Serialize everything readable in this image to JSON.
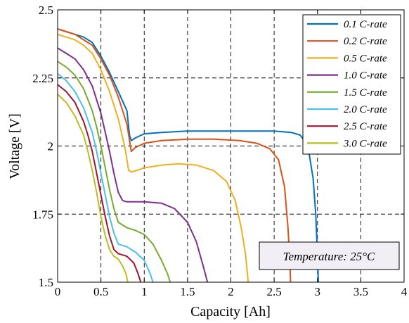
{
  "chart_data": {
    "type": "line",
    "xlabel": "Capacity [Ah]",
    "ylabel": "Voltage [V]",
    "xlim": [
      0,
      4
    ],
    "ylim": [
      1.5,
      2.5
    ],
    "xticks": [
      0,
      0.5,
      1,
      1.5,
      2,
      2.5,
      3,
      3.5,
      4
    ],
    "xtick_labels": [
      "0",
      "0.5",
      "1",
      "1.5",
      "2",
      "2.5",
      "3",
      "3.5",
      "4"
    ],
    "yticks": [
      1.5,
      1.75,
      2,
      2.25,
      2.5
    ],
    "ytick_labels": [
      "1.5",
      "1.75",
      "2",
      "2.25",
      "2.5"
    ],
    "grid": true,
    "legend_position": "top-right",
    "annotation": "Temperature: 25°C",
    "series": [
      {
        "name": "0.1 C-rate",
        "color": "#0072BD",
        "points": [
          [
            0,
            2.43
          ],
          [
            0.1,
            2.42
          ],
          [
            0.2,
            2.41
          ],
          [
            0.3,
            2.4
          ],
          [
            0.4,
            2.38
          ],
          [
            0.5,
            2.33
          ],
          [
            0.6,
            2.27
          ],
          [
            0.7,
            2.2
          ],
          [
            0.8,
            2.13
          ],
          [
            0.83,
            2.04
          ],
          [
            0.85,
            2.02
          ],
          [
            0.9,
            2.03
          ],
          [
            1.0,
            2.045
          ],
          [
            1.2,
            2.05
          ],
          [
            1.5,
            2.055
          ],
          [
            2.0,
            2.055
          ],
          [
            2.5,
            2.055
          ],
          [
            2.7,
            2.05
          ],
          [
            2.8,
            2.04
          ],
          [
            2.85,
            2.02
          ],
          [
            2.9,
            1.98
          ],
          [
            2.95,
            1.88
          ],
          [
            2.98,
            1.75
          ],
          [
            3.0,
            1.6
          ],
          [
            3.01,
            1.5
          ]
        ]
      },
      {
        "name": "0.2 C-rate",
        "color": "#D95319",
        "points": [
          [
            0,
            2.43
          ],
          [
            0.1,
            2.42
          ],
          [
            0.2,
            2.41
          ],
          [
            0.3,
            2.39
          ],
          [
            0.4,
            2.37
          ],
          [
            0.5,
            2.32
          ],
          [
            0.6,
            2.26
          ],
          [
            0.7,
            2.18
          ],
          [
            0.8,
            2.08
          ],
          [
            0.85,
            1.98
          ],
          [
            0.9,
            1.995
          ],
          [
            1.0,
            2.01
          ],
          [
            1.2,
            2.02
          ],
          [
            1.5,
            2.025
          ],
          [
            1.8,
            2.025
          ],
          [
            2.1,
            2.02
          ],
          [
            2.3,
            2.01
          ],
          [
            2.45,
            1.99
          ],
          [
            2.55,
            1.95
          ],
          [
            2.62,
            1.85
          ],
          [
            2.66,
            1.7
          ],
          [
            2.68,
            1.58
          ],
          [
            2.69,
            1.5
          ]
        ]
      },
      {
        "name": "0.5 C-rate",
        "color": "#EDB120",
        "points": [
          [
            0,
            2.41
          ],
          [
            0.1,
            2.4
          ],
          [
            0.2,
            2.39
          ],
          [
            0.3,
            2.37
          ],
          [
            0.4,
            2.34
          ],
          [
            0.5,
            2.28
          ],
          [
            0.6,
            2.2
          ],
          [
            0.7,
            2.1
          ],
          [
            0.78,
            1.99
          ],
          [
            0.82,
            1.91
          ],
          [
            0.86,
            1.905
          ],
          [
            1.0,
            1.92
          ],
          [
            1.2,
            1.93
          ],
          [
            1.4,
            1.935
          ],
          [
            1.6,
            1.93
          ],
          [
            1.8,
            1.91
          ],
          [
            1.95,
            1.87
          ],
          [
            2.05,
            1.8
          ],
          [
            2.12,
            1.7
          ],
          [
            2.17,
            1.6
          ],
          [
            2.2,
            1.5
          ]
        ]
      },
      {
        "name": "1.0 C-rate",
        "color": "#7E2F8E",
        "points": [
          [
            0,
            2.36
          ],
          [
            0.1,
            2.34
          ],
          [
            0.2,
            2.32
          ],
          [
            0.3,
            2.28
          ],
          [
            0.4,
            2.22
          ],
          [
            0.5,
            2.12
          ],
          [
            0.55,
            2.05
          ],
          [
            0.6,
            1.98
          ],
          [
            0.65,
            1.9
          ],
          [
            0.7,
            1.83
          ],
          [
            0.75,
            1.8
          ],
          [
            0.8,
            1.795
          ],
          [
            1.0,
            1.795
          ],
          [
            1.2,
            1.79
          ],
          [
            1.35,
            1.77
          ],
          [
            1.5,
            1.72
          ],
          [
            1.6,
            1.65
          ],
          [
            1.68,
            1.56
          ],
          [
            1.73,
            1.5
          ]
        ]
      },
      {
        "name": "1.5 C-rate",
        "color": "#77AC30",
        "points": [
          [
            0,
            2.31
          ],
          [
            0.1,
            2.29
          ],
          [
            0.2,
            2.26
          ],
          [
            0.3,
            2.21
          ],
          [
            0.4,
            2.13
          ],
          [
            0.45,
            2.07
          ],
          [
            0.5,
            2.0
          ],
          [
            0.55,
            1.92
          ],
          [
            0.6,
            1.84
          ],
          [
            0.65,
            1.77
          ],
          [
            0.7,
            1.72
          ],
          [
            0.8,
            1.7
          ],
          [
            0.9,
            1.69
          ],
          [
            1.0,
            1.675
          ],
          [
            1.1,
            1.64
          ],
          [
            1.2,
            1.58
          ],
          [
            1.27,
            1.53
          ],
          [
            1.3,
            1.5
          ]
        ]
      },
      {
        "name": "2.0 C-rate",
        "color": "#4DBEEE",
        "points": [
          [
            0,
            2.265
          ],
          [
            0.1,
            2.24
          ],
          [
            0.2,
            2.2
          ],
          [
            0.3,
            2.14
          ],
          [
            0.4,
            2.05
          ],
          [
            0.45,
            1.98
          ],
          [
            0.5,
            1.9
          ],
          [
            0.55,
            1.82
          ],
          [
            0.6,
            1.74
          ],
          [
            0.65,
            1.68
          ],
          [
            0.7,
            1.64
          ],
          [
            0.8,
            1.63
          ],
          [
            0.9,
            1.61
          ],
          [
            1.0,
            1.58
          ],
          [
            1.07,
            1.53
          ],
          [
            1.1,
            1.5
          ]
        ]
      },
      {
        "name": "2.5 C-rate",
        "color": "#A2142F",
        "points": [
          [
            0,
            2.225
          ],
          [
            0.1,
            2.2
          ],
          [
            0.2,
            2.16
          ],
          [
            0.3,
            2.09
          ],
          [
            0.35,
            2.04
          ],
          [
            0.4,
            1.98
          ],
          [
            0.45,
            1.9
          ],
          [
            0.5,
            1.82
          ],
          [
            0.55,
            1.74
          ],
          [
            0.6,
            1.67
          ],
          [
            0.65,
            1.62
          ],
          [
            0.7,
            1.605
          ],
          [
            0.8,
            1.595
          ],
          [
            0.88,
            1.57
          ],
          [
            0.93,
            1.53
          ],
          [
            0.96,
            1.5
          ]
        ]
      },
      {
        "name": "3.0 C-rate",
        "color": "#BDBD1F",
        "points": [
          [
            0,
            2.19
          ],
          [
            0.1,
            2.16
          ],
          [
            0.2,
            2.11
          ],
          [
            0.3,
            2.04
          ],
          [
            0.35,
            1.98
          ],
          [
            0.4,
            1.91
          ],
          [
            0.45,
            1.83
          ],
          [
            0.5,
            1.74
          ],
          [
            0.55,
            1.67
          ],
          [
            0.6,
            1.62
          ],
          [
            0.65,
            1.595
          ],
          [
            0.7,
            1.585
          ],
          [
            0.75,
            1.56
          ],
          [
            0.79,
            1.53
          ],
          [
            0.81,
            1.5
          ]
        ]
      }
    ]
  }
}
